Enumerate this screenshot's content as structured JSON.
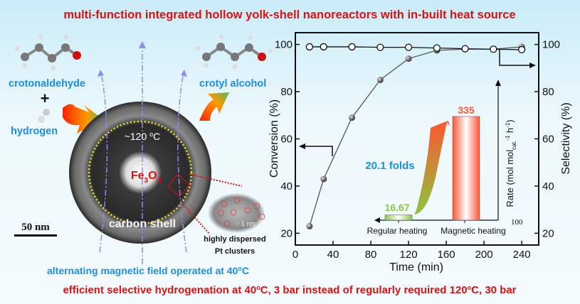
{
  "title": "multi-function integrated hollow yolk-shell nanoreactors with in-built heat source",
  "footer": "efficient selective hydrogenation at 40oC, 3 bar instead of regularly required 120oC, 30 bar",
  "footer_parts": [
    "efficient selective hydrogenation at 40",
    "o",
    "C, 3 bar instead of regularly required 120",
    "o",
    "C, 30 bar"
  ],
  "scheme": {
    "reactant": "crotonaldehyde",
    "plus": "+",
    "hydrogen": "hydrogen",
    "product": "crotyl alcohol",
    "temperature": [
      "~120 ",
      "o",
      "C"
    ],
    "core": [
      "Fe",
      "3",
      "O",
      "4"
    ],
    "shell": "carbon shell",
    "scale_bar": "50 nm",
    "cluster_size": "~ 1 nm",
    "cluster_label": [
      "highly dispersed",
      "Pt clusters"
    ],
    "field": [
      "alternating magnetic field operated at 40",
      "o",
      "C"
    ]
  },
  "colors": {
    "title": "#e01010",
    "label_blue": "#1a8fe8",
    "regular": "#8cc63f",
    "magnetic": "#ff5533",
    "field_lines": "#8a8cf0"
  },
  "chart_data": [
    {
      "type": "line",
      "xlabel": "Time (min)",
      "ylabel": "Conversion (%)",
      "y2label": "Selectivity (%)",
      "xlim": [
        0,
        258
      ],
      "ylim": [
        15,
        105
      ],
      "xticks": [
        0,
        40,
        80,
        120,
        160,
        200,
        240
      ],
      "yticks": [
        20,
        40,
        60,
        80,
        100
      ],
      "grid": false,
      "series": [
        {
          "axis": "left",
          "marker": "filled-grey-sphere",
          "x": [
            15,
            30,
            60,
            90,
            120,
            150,
            180,
            210,
            240
          ],
          "values": [
            23,
            43,
            69,
            85,
            94,
            97.5,
            98,
            98,
            99
          ]
        },
        {
          "axis": "right",
          "marker": "open-circle",
          "x": [
            15,
            30,
            60,
            90,
            120,
            150,
            180,
            210,
            240
          ],
          "values": [
            99,
            99,
            99,
            98.8,
            98.8,
            98.5,
            98.2,
            98,
            97.8
          ]
        }
      ]
    },
    {
      "type": "bar",
      "ylabel": [
        "Rate (mol mol",
        "cat.",
        "-1",
        " h",
        "-1",
        ")"
      ],
      "axis_label": "100",
      "categories": [
        "Regular heating",
        "Magnetic heating"
      ],
      "values": [
        16.67,
        335
      ],
      "value_labels": [
        "16.67",
        "335"
      ],
      "annotation": "20.1 folds"
    }
  ]
}
